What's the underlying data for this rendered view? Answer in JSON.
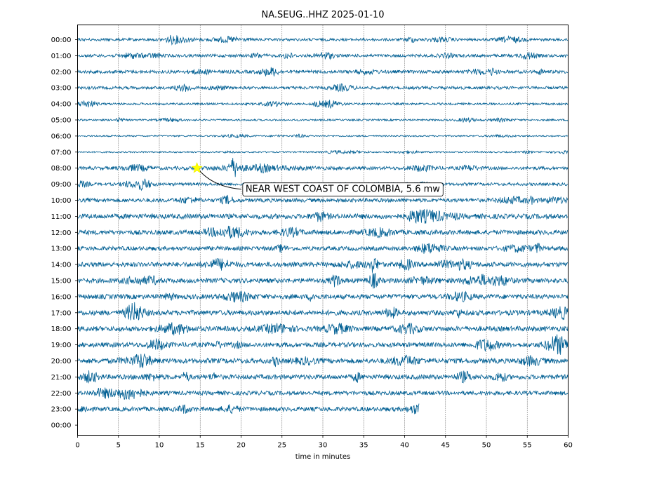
{
  "chart_data": {
    "type": "seismogram",
    "title": "NA.SEUG..HHZ 2025-01-10",
    "xlabel": "time in minutes",
    "ylabel": "",
    "xlim": [
      0,
      60
    ],
    "x_ticks": [
      "0",
      "5",
      "10",
      "15",
      "20",
      "25",
      "30",
      "35",
      "40",
      "45",
      "50",
      "55",
      "60"
    ],
    "y_ticks": [
      "00:00",
      "01:00",
      "02:00",
      "03:00",
      "04:00",
      "05:00",
      "06:00",
      "07:00",
      "08:00",
      "09:00",
      "10:00",
      "11:00",
      "12:00",
      "13:00",
      "14:00",
      "15:00",
      "16:00",
      "17:00",
      "18:00",
      "19:00",
      "20:00",
      "21:00",
      "22:00",
      "23:00",
      "00:00"
    ],
    "grid": "vertical dotted lines at x ticks",
    "trace_color": "#005f93",
    "trace_end_last_hour_minutes": 41.8,
    "row_relative_amplitude": [
      0.45,
      0.5,
      0.55,
      0.5,
      0.35,
      0.3,
      0.25,
      0.25,
      0.55,
      0.5,
      0.65,
      0.85,
      0.8,
      0.7,
      0.8,
      0.8,
      0.8,
      0.85,
      0.85,
      0.8,
      0.85,
      0.8,
      0.7,
      0.75
    ],
    "events": [
      {
        "hour": 8,
        "minute": 14.6,
        "marker": "star",
        "marker_color": "#ffff00",
        "label": "NEAR WEST COAST OF COLOMBIA, 5.6 mw"
      }
    ]
  }
}
